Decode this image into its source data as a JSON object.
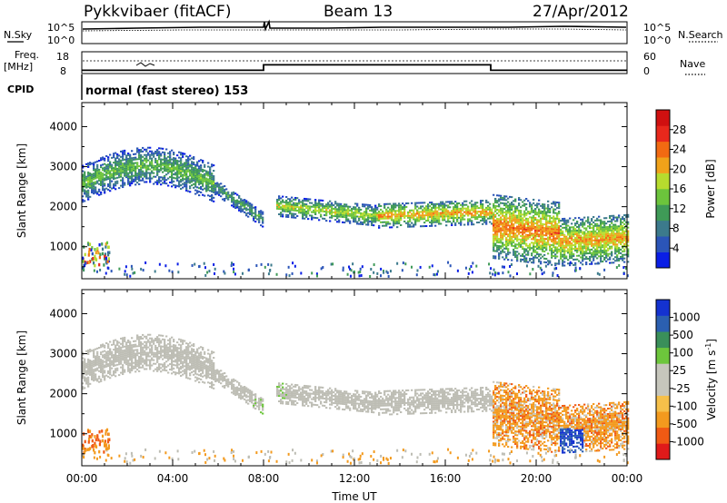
{
  "header": {
    "radar": "Pykkvibaer (fitACF)",
    "beam": "Beam 13",
    "date": "27/Apr/2012"
  },
  "strip_panels": {
    "nsky_label": "N.Sky",
    "nsky_ticks": [
      "10^5",
      "10^0"
    ],
    "nsearch_label": "N.Search",
    "nsearch_ticks": [
      "10^5",
      "10^0"
    ],
    "freq_label": "Freq.",
    "freq_unit": "[MHz]",
    "freq_ticks": [
      "18",
      "8"
    ],
    "nave_label": "Nave",
    "nave_ticks": [
      "60",
      "0"
    ],
    "cpid_label": "CPID",
    "cpid_text": "normal (fast stereo) 153",
    "freq_segments": [
      {
        "from": 0,
        "to": 8,
        "value": 9.5
      },
      {
        "from": 8,
        "to": 18,
        "value": 12
      },
      {
        "from": 18,
        "to": 24,
        "value": 9.5
      }
    ]
  },
  "colors": {
    "power_scale": [
      "#0a1ee6",
      "#2b55b8",
      "#3c7a8c",
      "#3f9a57",
      "#6cc43c",
      "#b7dc2e",
      "#f0a21a",
      "#f26a12",
      "#e8281c",
      "#d01010"
    ],
    "velocity_scale": [
      "#e01a1a",
      "#f05a14",
      "#f39a1e",
      "#f6c04a",
      "#c6c6bc",
      "#c6c6bc",
      "#6dc63c",
      "#3a8f5a",
      "#2b5fb0",
      "#1432d0"
    ],
    "ground_scatter": "#bdbdb4"
  },
  "chart_data": [
    {
      "type": "heatmap",
      "name": "power",
      "ylabel": "Slant Range [km]",
      "xlim": [
        0,
        24
      ],
      "ylim": [
        200,
        4600
      ],
      "yticks": [
        1000,
        2000,
        3000,
        4000
      ],
      "colorbar": {
        "label": "Power [dB]",
        "ticks": [
          4,
          8,
          12,
          16,
          20,
          24,
          28
        ],
        "range": [
          0,
          32
        ]
      },
      "echo_bands": [
        {
          "from_h": 0.0,
          "to_h": 5.8,
          "range_start_km": 2500,
          "range_end_km": 2500,
          "width_km": 450,
          "power_db": 14,
          "note": "arc peaking near 3000 km around 03:00"
        },
        {
          "from_h": 5.8,
          "to_h": 8.0,
          "range_start_km": 2500,
          "range_end_km": 1650,
          "width_km": 200,
          "power_db": 12
        },
        {
          "from_h": 8.5,
          "to_h": 13.0,
          "range_start_km": 2000,
          "range_end_km": 1750,
          "width_km": 250,
          "power_db": 18
        },
        {
          "from_h": 13.0,
          "to_h": 18.0,
          "range_start_km": 1750,
          "range_end_km": 1850,
          "width_km": 300,
          "power_db": 22
        },
        {
          "from_h": 18.0,
          "to_h": 21.0,
          "range_start_km": 1500,
          "range_end_km": 1300,
          "width_km": 800,
          "power_db": 24
        },
        {
          "from_h": 21.0,
          "to_h": 24.0,
          "range_start_km": 1100,
          "range_end_km": 1200,
          "width_km": 600,
          "power_db": 22
        }
      ]
    },
    {
      "type": "heatmap",
      "name": "velocity",
      "ylabel": "Slant Range [km]",
      "xlabel": "Time UT",
      "xlim": [
        0,
        24
      ],
      "ylim": [
        200,
        4600
      ],
      "yticks": [
        1000,
        2000,
        3000,
        4000
      ],
      "xticks": [
        "00:00",
        "04:00",
        "08:00",
        "12:00",
        "16:00",
        "20:00",
        "00:00"
      ],
      "colorbar": {
        "label": "Velocity  [m s-1]",
        "label_main": "Velocity  [m s",
        "label_sup": "-1",
        "label_end": "]",
        "ticks": [
          "1000",
          "500",
          "100",
          "25",
          "-25",
          "-100",
          "-500",
          "-1000"
        ]
      },
      "echo_bands": [
        {
          "from_h": 0.0,
          "to_h": 18.0,
          "velocity_ms": 0,
          "note": "mostly ground scatter (grey)"
        },
        {
          "from_h": 18.0,
          "to_h": 24.0,
          "velocity_ms": -300,
          "note": "mixed orange negative velocities"
        },
        {
          "from_h": 21.0,
          "to_h": 22.0,
          "range_km": 900,
          "velocity_ms": 700,
          "note": "blue patch near 900 km"
        }
      ]
    }
  ]
}
